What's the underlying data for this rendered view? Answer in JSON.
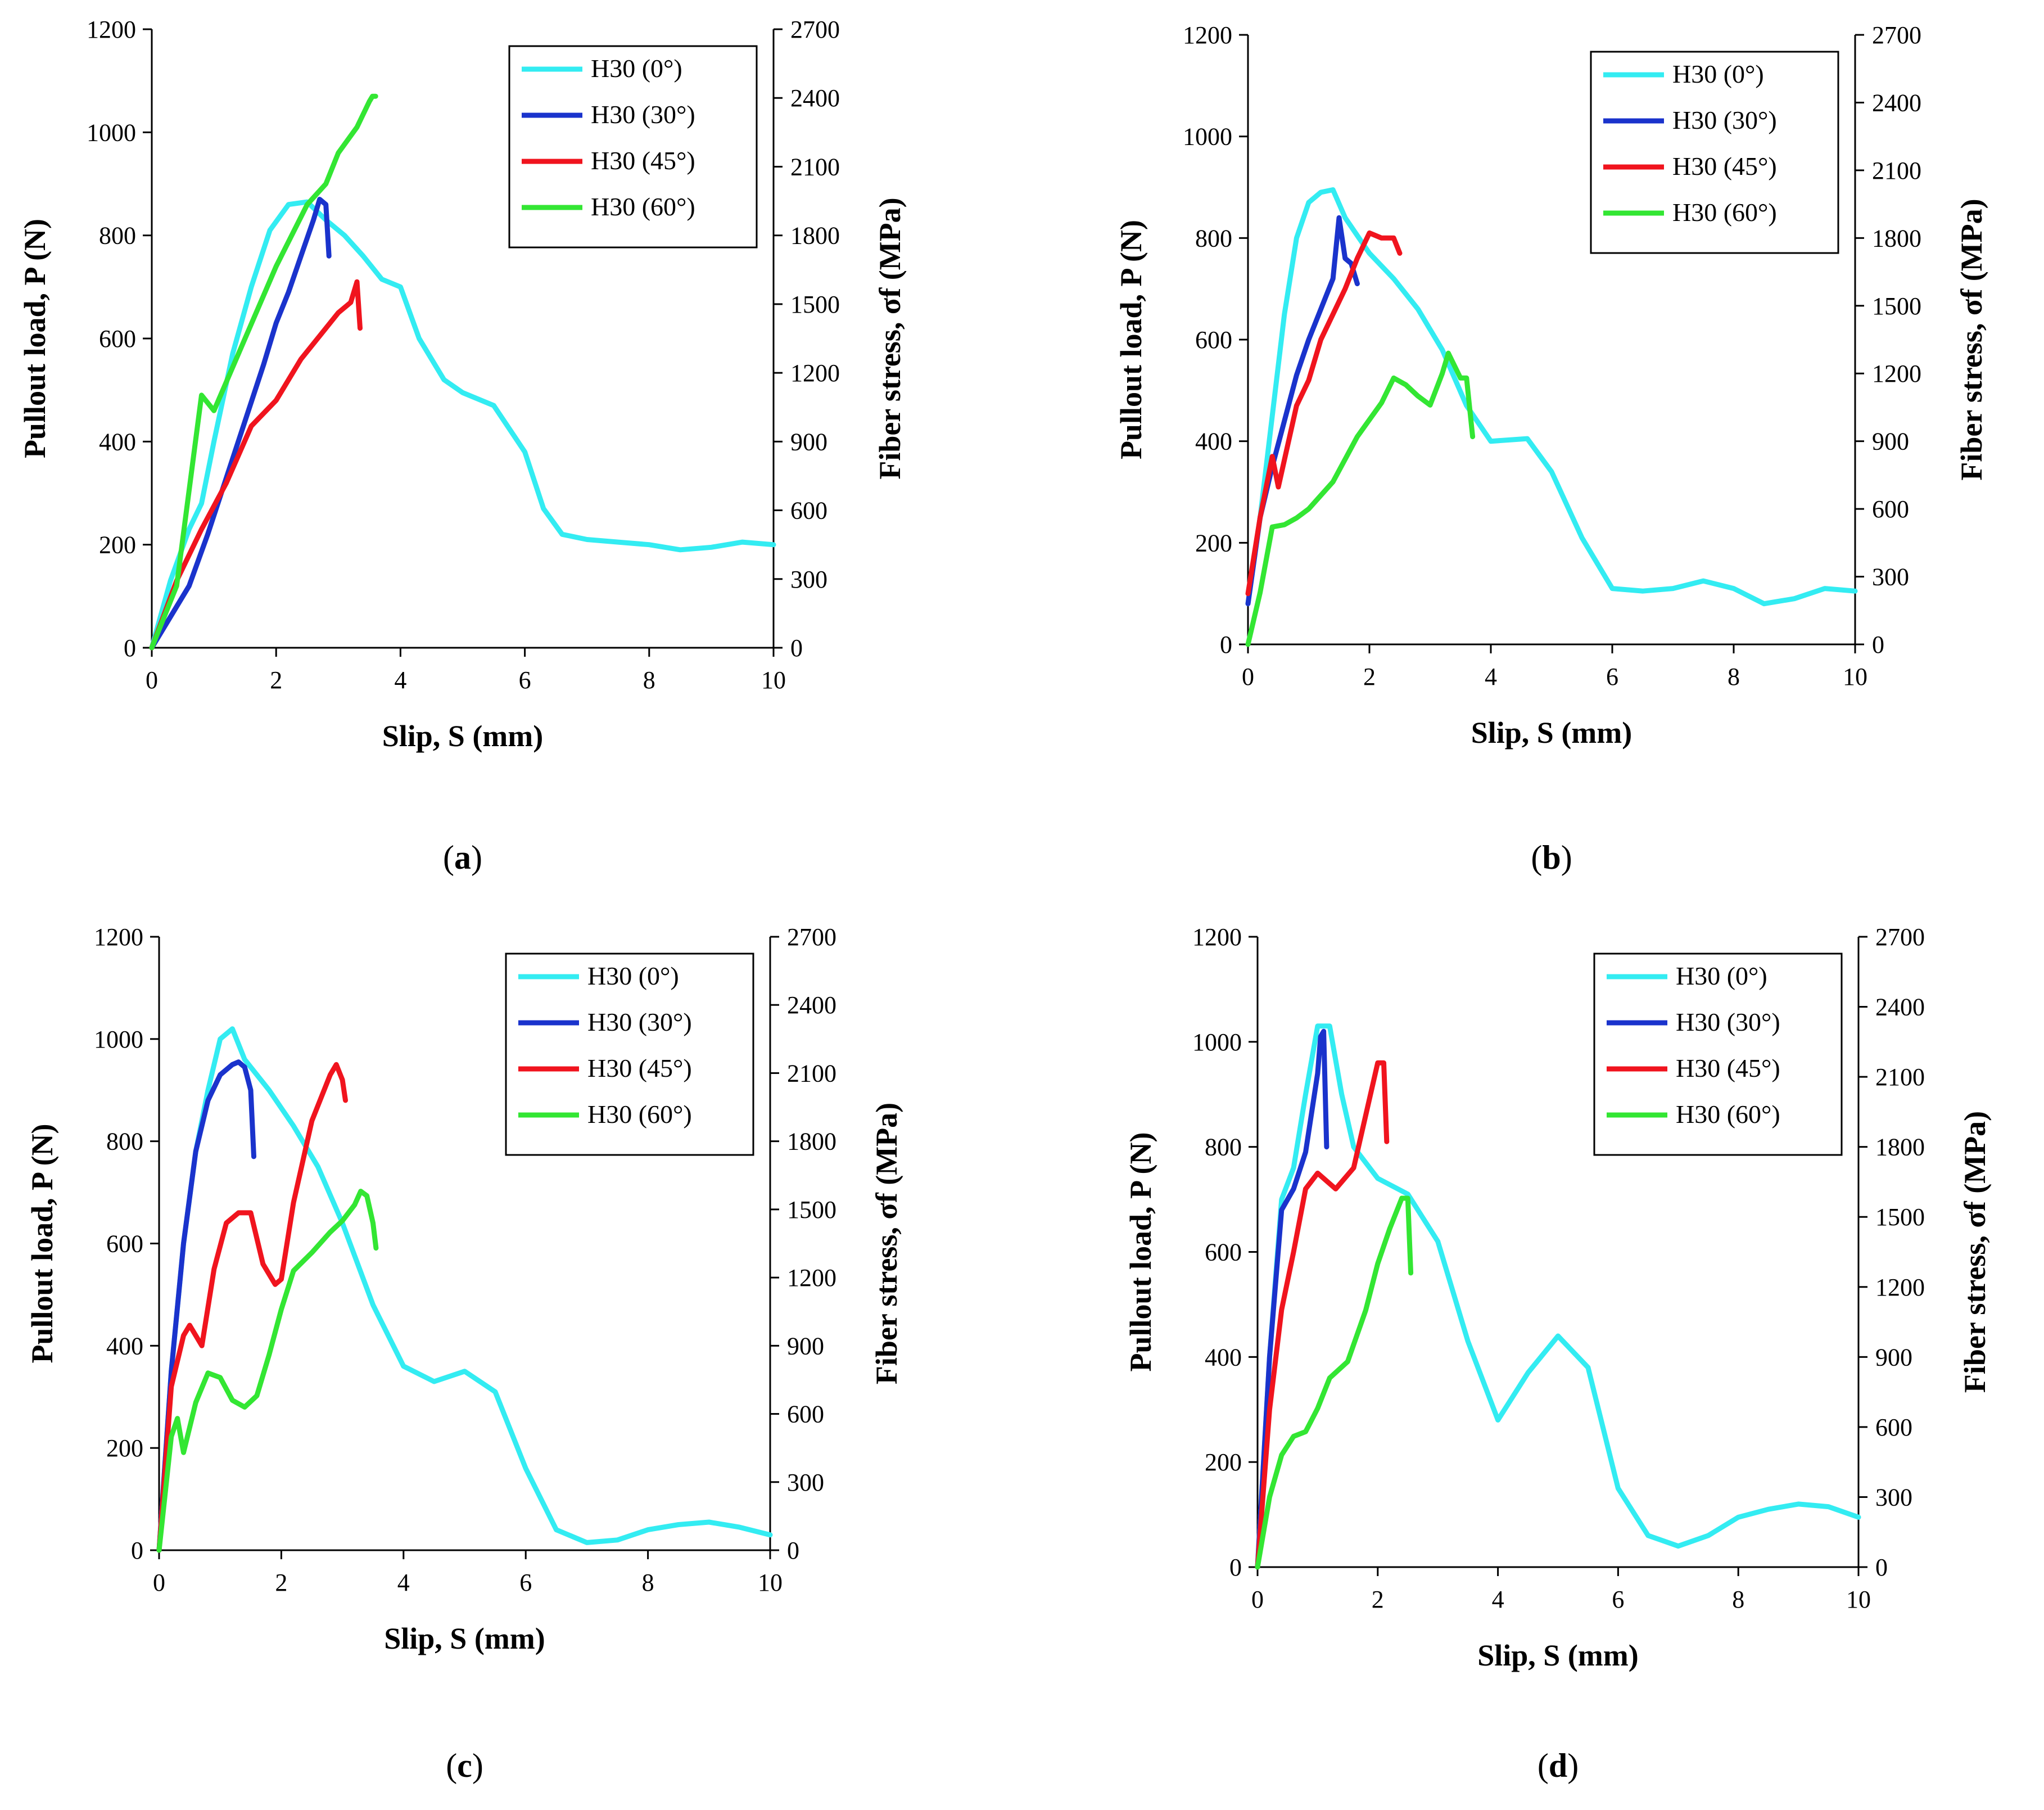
{
  "chart_data": [
    {
      "type": "line",
      "panel_label": "a",
      "xlabel": "Slip, S (mm)",
      "ylabel": "Pullout load, P (N)",
      "ylabel2": "Fiber stress, σf (MPa)",
      "xlim": [
        0,
        10
      ],
      "ylim": [
        0,
        1200
      ],
      "y2lim": [
        0,
        2700
      ],
      "xticks": [
        0,
        2,
        4,
        6,
        8,
        10
      ],
      "yticks": [
        0,
        200,
        400,
        600,
        800,
        1000,
        1200
      ],
      "y2ticks": [
        0,
        300,
        600,
        900,
        1200,
        1500,
        1800,
        2100,
        2400,
        2700
      ],
      "legend_position": "top-right",
      "series": [
        {
          "name": "H30 (0°)",
          "color": "#33ECF2",
          "x": [
            0,
            0.3,
            0.6,
            0.8,
            1.0,
            1.3,
            1.6,
            1.9,
            2.2,
            2.5,
            2.8,
            3.1,
            3.4,
            3.7,
            4.0,
            4.3,
            4.7,
            5.0,
            5.5,
            6.0,
            6.3,
            6.6,
            7.0,
            7.5,
            8.0,
            8.5,
            9.0,
            9.5,
            10.0
          ],
          "y": [
            0,
            130,
            230,
            280,
            400,
            570,
            700,
            810,
            860,
            865,
            830,
            800,
            760,
            715,
            700,
            600,
            520,
            495,
            470,
            380,
            270,
            220,
            210,
            205,
            200,
            190,
            195,
            205,
            200
          ]
        },
        {
          "name": "H30 (30°)",
          "color": "#1A33CC",
          "x": [
            0,
            0.3,
            0.6,
            0.9,
            1.2,
            1.5,
            1.8,
            2.0,
            2.2,
            2.4,
            2.6,
            2.7,
            2.8,
            2.85
          ],
          "y": [
            0,
            60,
            120,
            220,
            330,
            440,
            550,
            630,
            690,
            760,
            830,
            870,
            860,
            760
          ]
        },
        {
          "name": "H30 (45°)",
          "color": "#F0141E",
          "x": [
            0,
            0.4,
            0.8,
            1.2,
            1.6,
            2.0,
            2.4,
            2.8,
            3.0,
            3.2,
            3.3,
            3.35
          ],
          "y": [
            0,
            130,
            230,
            320,
            430,
            480,
            560,
            620,
            650,
            670,
            710,
            620
          ]
        },
        {
          "name": "H30 (60°)",
          "color": "#33E633",
          "x": [
            0,
            0.4,
            0.8,
            1.0,
            1.5,
            2.0,
            2.5,
            2.8,
            3.0,
            3.3,
            3.5,
            3.55,
            3.6
          ],
          "y": [
            0,
            120,
            490,
            460,
            600,
            740,
            860,
            900,
            960,
            1010,
            1060,
            1070,
            1070
          ]
        }
      ]
    },
    {
      "type": "line",
      "panel_label": "b",
      "xlabel": "Slip, S (mm)",
      "ylabel": "Pullout load, P (N)",
      "ylabel2": "Fiber stress, σf (MPa)",
      "xlim": [
        0,
        10
      ],
      "ylim": [
        0,
        1200
      ],
      "y2lim": [
        0,
        2700
      ],
      "xticks": [
        0,
        2,
        4,
        6,
        8,
        10
      ],
      "yticks": [
        0,
        200,
        400,
        600,
        800,
        1000,
        1200
      ],
      "y2ticks": [
        0,
        300,
        600,
        900,
        1200,
        1500,
        1800,
        2100,
        2400,
        2700
      ],
      "legend_position": "top-right",
      "series": [
        {
          "name": "H30 (0°)",
          "color": "#33ECF2",
          "x": [
            0,
            0.2,
            0.4,
            0.6,
            0.8,
            1.0,
            1.2,
            1.4,
            1.6,
            2.0,
            2.4,
            2.8,
            3.2,
            3.6,
            4.0,
            4.6,
            5.0,
            5.5,
            6.0,
            6.5,
            7.0,
            7.5,
            8.0,
            8.5,
            9.0,
            9.5,
            10.0
          ],
          "y": [
            80,
            250,
            450,
            650,
            800,
            870,
            890,
            895,
            840,
            770,
            720,
            660,
            580,
            470,
            400,
            405,
            340,
            210,
            110,
            105,
            110,
            125,
            110,
            80,
            90,
            110,
            105
          ]
        },
        {
          "name": "H30 (30°)",
          "color": "#1A33CC",
          "x": [
            0,
            0.2,
            0.4,
            0.6,
            0.8,
            1.0,
            1.2,
            1.4,
            1.5,
            1.6,
            1.7,
            1.8
          ],
          "y": [
            80,
            250,
            350,
            440,
            530,
            600,
            660,
            720,
            840,
            760,
            750,
            710
          ]
        },
        {
          "name": "H30 (45°)",
          "color": "#F0141E",
          "x": [
            0,
            0.2,
            0.4,
            0.5,
            0.8,
            1.0,
            1.2,
            1.6,
            1.8,
            2.0,
            2.2,
            2.4,
            2.5
          ],
          "y": [
            100,
            250,
            370,
            310,
            470,
            520,
            600,
            700,
            760,
            810,
            800,
            800,
            770
          ]
        },
        {
          "name": "H30 (60°)",
          "color": "#33E633",
          "x": [
            0,
            0.2,
            0.4,
            0.6,
            0.8,
            1.0,
            1.4,
            1.8,
            2.2,
            2.4,
            2.6,
            2.8,
            3.0,
            3.2,
            3.3,
            3.5,
            3.6,
            3.7
          ],
          "y": [
            0,
            230,
            520,
            530,
            560,
            600,
            720,
            920,
            1070,
            1180,
            1150,
            1100,
            1060,
            1200,
            1290,
            1180,
            1180,
            920
          ]
        }
      ]
    },
    {
      "type": "line",
      "panel_label": "c",
      "xlabel": "Slip, S (mm)",
      "ylabel": "Pullout load, P (N)",
      "ylabel2": "Fiber stress, σf (MPa)",
      "xlim": [
        0,
        10
      ],
      "ylim": [
        0,
        1200
      ],
      "y2lim": [
        0,
        2700
      ],
      "xticks": [
        0,
        2,
        4,
        6,
        8,
        10
      ],
      "yticks": [
        0,
        200,
        400,
        600,
        800,
        1000,
        1200
      ],
      "y2ticks": [
        0,
        300,
        600,
        900,
        1200,
        1500,
        1800,
        2100,
        2400,
        2700
      ],
      "legend_position": "top-right",
      "series": [
        {
          "name": "H30 (0°)",
          "color": "#33ECF2",
          "x": [
            0,
            0.2,
            0.4,
            0.6,
            0.8,
            1.0,
            1.2,
            1.4,
            1.8,
            2.2,
            2.6,
            3.0,
            3.5,
            4.0,
            4.5,
            5.0,
            5.5,
            6.0,
            6.5,
            7.0,
            7.5,
            8.0,
            8.5,
            9.0,
            9.5,
            10.0
          ],
          "y": [
            0,
            350,
            600,
            780,
            900,
            1000,
            1020,
            960,
            900,
            830,
            750,
            640,
            480,
            360,
            330,
            350,
            310,
            160,
            40,
            15,
            20,
            40,
            50,
            55,
            45,
            30
          ]
        },
        {
          "name": "H30 (30°)",
          "color": "#1A33CC",
          "x": [
            0,
            0.2,
            0.4,
            0.6,
            0.8,
            1.0,
            1.2,
            1.3,
            1.4,
            1.5,
            1.55
          ],
          "y": [
            0,
            350,
            600,
            780,
            880,
            930,
            950,
            955,
            945,
            900,
            770
          ]
        },
        {
          "name": "H30 (45°)",
          "color": "#F0141E",
          "x": [
            0,
            0.2,
            0.4,
            0.5,
            0.7,
            0.9,
            1.1,
            1.3,
            1.5,
            1.7,
            1.9,
            2.0,
            2.2,
            2.5,
            2.8,
            2.9,
            3.0,
            3.05
          ],
          "y": [
            0,
            320,
            420,
            440,
            400,
            550,
            640,
            660,
            660,
            560,
            520,
            530,
            680,
            840,
            930,
            950,
            920,
            880
          ]
        },
        {
          "name": "H30 (60°)",
          "color": "#33E633",
          "x": [
            0,
            0.2,
            0.3,
            0.4,
            0.6,
            0.8,
            1.0,
            1.2,
            1.4,
            1.6,
            1.8,
            2.0,
            2.2,
            2.5,
            2.8,
            3.0,
            3.2,
            3.3,
            3.4,
            3.5,
            3.55
          ],
          "y": [
            0,
            500,
            580,
            430,
            650,
            780,
            760,
            660,
            630,
            680,
            860,
            1060,
            1230,
            1310,
            1400,
            1450,
            1520,
            1580,
            1560,
            1440,
            1330
          ]
        }
      ]
    },
    {
      "type": "line",
      "panel_label": "d",
      "xlabel": "Slip, S (mm)",
      "ylabel": "Pullout load, P (N)",
      "ylabel2": "Fiber stress, σf (MPa)",
      "xlim": [
        0,
        10
      ],
      "ylim": [
        0,
        1200
      ],
      "y2lim": [
        0,
        2700
      ],
      "xticks": [
        0,
        2,
        4,
        6,
        8,
        10
      ],
      "yticks": [
        0,
        200,
        400,
        600,
        800,
        1000,
        1200
      ],
      "y2ticks": [
        0,
        300,
        600,
        900,
        1200,
        1500,
        1800,
        2100,
        2400,
        2700
      ],
      "legend_position": "top-right",
      "series": [
        {
          "name": "H30 (0°)",
          "color": "#33ECF2",
          "x": [
            0,
            0.2,
            0.4,
            0.6,
            0.8,
            1.0,
            1.2,
            1.4,
            1.6,
            2.0,
            2.5,
            3.0,
            3.5,
            4.0,
            4.5,
            5.0,
            5.5,
            6.0,
            6.5,
            7.0,
            7.5,
            8.0,
            8.5,
            9.0,
            9.5,
            10.0
          ],
          "y": [
            0,
            400,
            700,
            760,
            900,
            1030,
            1030,
            900,
            800,
            740,
            710,
            620,
            430,
            280,
            370,
            440,
            380,
            150,
            60,
            40,
            60,
            95,
            110,
            120,
            115,
            95
          ]
        },
        {
          "name": "H30 (30°)",
          "color": "#1A33CC",
          "x": [
            0,
            0.2,
            0.4,
            0.6,
            0.8,
            1.0,
            1.05,
            1.1,
            1.15
          ],
          "y": [
            0,
            400,
            680,
            720,
            790,
            940,
            1010,
            1020,
            800
          ]
        },
        {
          "name": "H30 (45°)",
          "color": "#F0141E",
          "x": [
            0,
            0.2,
            0.4,
            0.6,
            0.8,
            1.0,
            1.3,
            1.6,
            1.8,
            2.0,
            2.1,
            2.15
          ],
          "y": [
            0,
            300,
            490,
            600,
            720,
            750,
            720,
            760,
            860,
            960,
            960,
            810
          ]
        },
        {
          "name": "H30 (60°)",
          "color": "#33E633",
          "x": [
            0,
            0.2,
            0.4,
            0.6,
            0.8,
            1.0,
            1.2,
            1.5,
            1.8,
            2.0,
            2.2,
            2.4,
            2.5,
            2.55
          ],
          "y": [
            0,
            300,
            480,
            560,
            580,
            680,
            810,
            880,
            1100,
            1300,
            1450,
            1580,
            1580,
            1260
          ]
        }
      ]
    }
  ]
}
